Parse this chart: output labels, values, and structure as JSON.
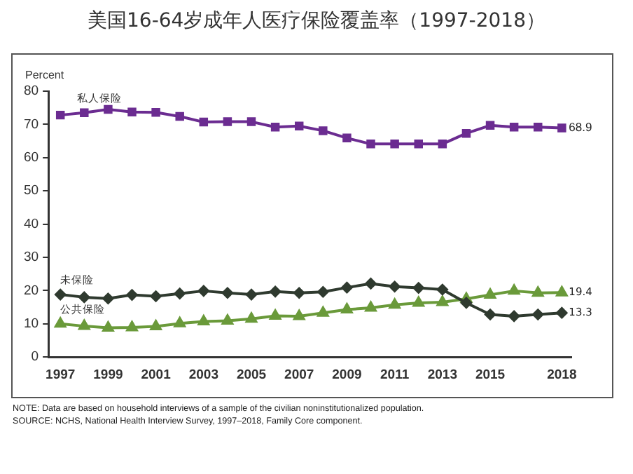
{
  "chart_data": {
    "type": "line",
    "title": "美国16-64岁成年人医疗保险覆盖率（1997-2018）",
    "ylabel": "Percent",
    "x": [
      1997,
      1998,
      1999,
      2000,
      2001,
      2002,
      2003,
      2004,
      2005,
      2006,
      2007,
      2008,
      2009,
      2010,
      2011,
      2012,
      2013,
      2014,
      2015,
      2016,
      2017,
      2018
    ],
    "series": [
      {
        "name": "私人保险",
        "color": "#6b2c91",
        "marker": "square",
        "values": [
          72.8,
          73.5,
          74.5,
          73.7,
          73.6,
          72.4,
          70.7,
          70.8,
          70.8,
          69.2,
          69.5,
          68.1,
          65.9,
          64.1,
          64.1,
          64.1,
          64.1,
          67.3,
          69.7,
          69.2,
          69.2,
          68.9
        ],
        "value_labels": [
          null,
          null,
          null,
          null,
          null,
          null,
          null,
          null,
          null,
          null,
          null,
          null,
          null,
          null,
          null,
          null,
          null,
          null,
          null,
          null,
          null,
          "68.9"
        ]
      },
      {
        "name": "未保险",
        "color": "#2f3a2f",
        "marker": "diamond",
        "values": [
          18.8,
          18.0,
          17.6,
          18.7,
          18.3,
          19.1,
          19.9,
          19.3,
          18.8,
          19.7,
          19.3,
          19.6,
          20.9,
          22.1,
          21.2,
          20.8,
          20.3,
          16.3,
          12.8,
          12.3,
          12.8,
          13.3
        ],
        "value_labels": [
          null,
          null,
          null,
          null,
          null,
          null,
          null,
          null,
          null,
          null,
          null,
          null,
          null,
          null,
          null,
          null,
          null,
          null,
          null,
          null,
          null,
          "13.3"
        ]
      },
      {
        "name": "公共保险",
        "color": "#6a9a3a",
        "marker": "triangle",
        "values": [
          10.0,
          9.3,
          8.8,
          8.9,
          9.2,
          10.1,
          10.7,
          10.9,
          11.5,
          12.4,
          12.3,
          13.3,
          14.3,
          14.8,
          15.7,
          16.3,
          16.5,
          17.5,
          18.7,
          19.9,
          19.3,
          19.4
        ],
        "value_labels": [
          null,
          null,
          null,
          null,
          null,
          null,
          null,
          null,
          null,
          null,
          null,
          null,
          null,
          null,
          null,
          null,
          null,
          null,
          null,
          null,
          null,
          "19.4"
        ]
      }
    ],
    "xlim": [
      1996.5,
      2018.4
    ],
    "xticks": [
      1997,
      1999,
      2001,
      2003,
      2005,
      2007,
      2009,
      2011,
      2013,
      2015,
      2018
    ],
    "ylim": [
      0,
      80
    ],
    "yticks": [
      0,
      10,
      20,
      30,
      40,
      50,
      60,
      70,
      80
    ],
    "grid": false,
    "legend": false,
    "line_style": "solid",
    "annotations": [
      "NOTE: Data are based on household interviews of a sample of the civilian noninstitutionalized population.",
      "SOURCE: NCHS, National Health Interview Survey, 1997–2018, Family Core component."
    ]
  }
}
